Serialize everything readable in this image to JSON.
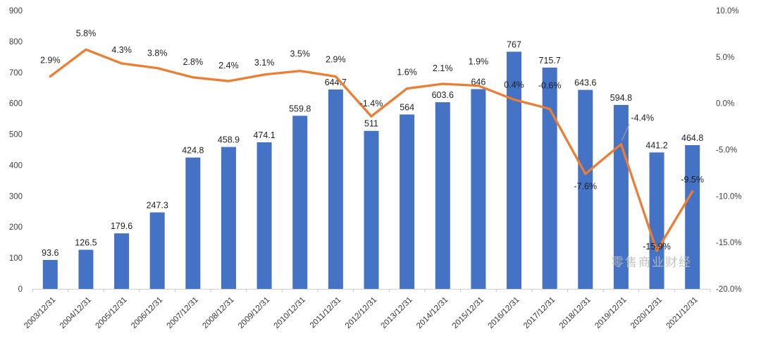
{
  "chart_data": {
    "type": "combo_bar_line",
    "title": "",
    "categories": [
      "2003/12/31",
      "2004/12/31",
      "2005/12/31",
      "2006/12/31",
      "2007/12/31",
      "2008/12/31",
      "2009/12/31",
      "2010/12/31",
      "2011/12/31",
      "2012/12/31",
      "2013/12/31",
      "2014/12/31",
      "2015/12/31",
      "2016/12/31",
      "2017/12/31",
      "2018/12/31",
      "2019/12/31",
      "2020/12/31",
      "2021/12/31"
    ],
    "series": [
      {
        "name": "value",
        "chart": "bar",
        "color": "#4472C4",
        "values": [
          93.6,
          126.5,
          179.6,
          247.3,
          424.8,
          458.9,
          474.1,
          559.8,
          644.7,
          511,
          564,
          603.6,
          646,
          767,
          715.7,
          643.6,
          594.8,
          441.2,
          464.8
        ],
        "labels": [
          "93.6",
          "126.5",
          "179.6",
          "247.3",
          "424.8",
          "458.9",
          "474.1",
          "559.8",
          "644.7",
          "511",
          "564",
          "603.6",
          "646",
          "767",
          "715.7",
          "643.6",
          "594.8",
          "441.2",
          "464.8"
        ]
      },
      {
        "name": "growth_rate",
        "chart": "line",
        "color": "#ED7D31",
        "values": [
          2.9,
          5.8,
          4.3,
          3.8,
          2.8,
          2.4,
          3.1,
          3.5,
          2.9,
          -1.4,
          1.6,
          2.1,
          1.9,
          0.4,
          -0.6,
          -7.6,
          -4.4,
          -15.9,
          -9.5
        ],
        "labels": [
          "2.9%",
          "5.8%",
          "4.3%",
          "3.8%",
          "2.8%",
          "2.4%",
          "3.1%",
          "3.5%",
          "2.9%",
          "-1.4%",
          "1.6%",
          "2.1%",
          "1.9%",
          "0.4%",
          "-0.6%",
          "-7.6%",
          "-4.4%",
          "-15.9%",
          "-9.5%"
        ]
      }
    ],
    "axes": {
      "left": {
        "min": 0,
        "max": 900,
        "tick_labels": [
          "900",
          "800",
          "700",
          "600",
          "500",
          "400",
          "300",
          "200",
          "100",
          "0"
        ]
      },
      "right": {
        "min": -20,
        "max": 10,
        "tick_labels": [
          "10.0%",
          "5.0%",
          "0.0%",
          "-5.0%",
          "-10.0%",
          "-15.0%",
          "-20.0%"
        ]
      }
    },
    "grid": false,
    "legend": "none",
    "watermark": "零售商业财经"
  }
}
